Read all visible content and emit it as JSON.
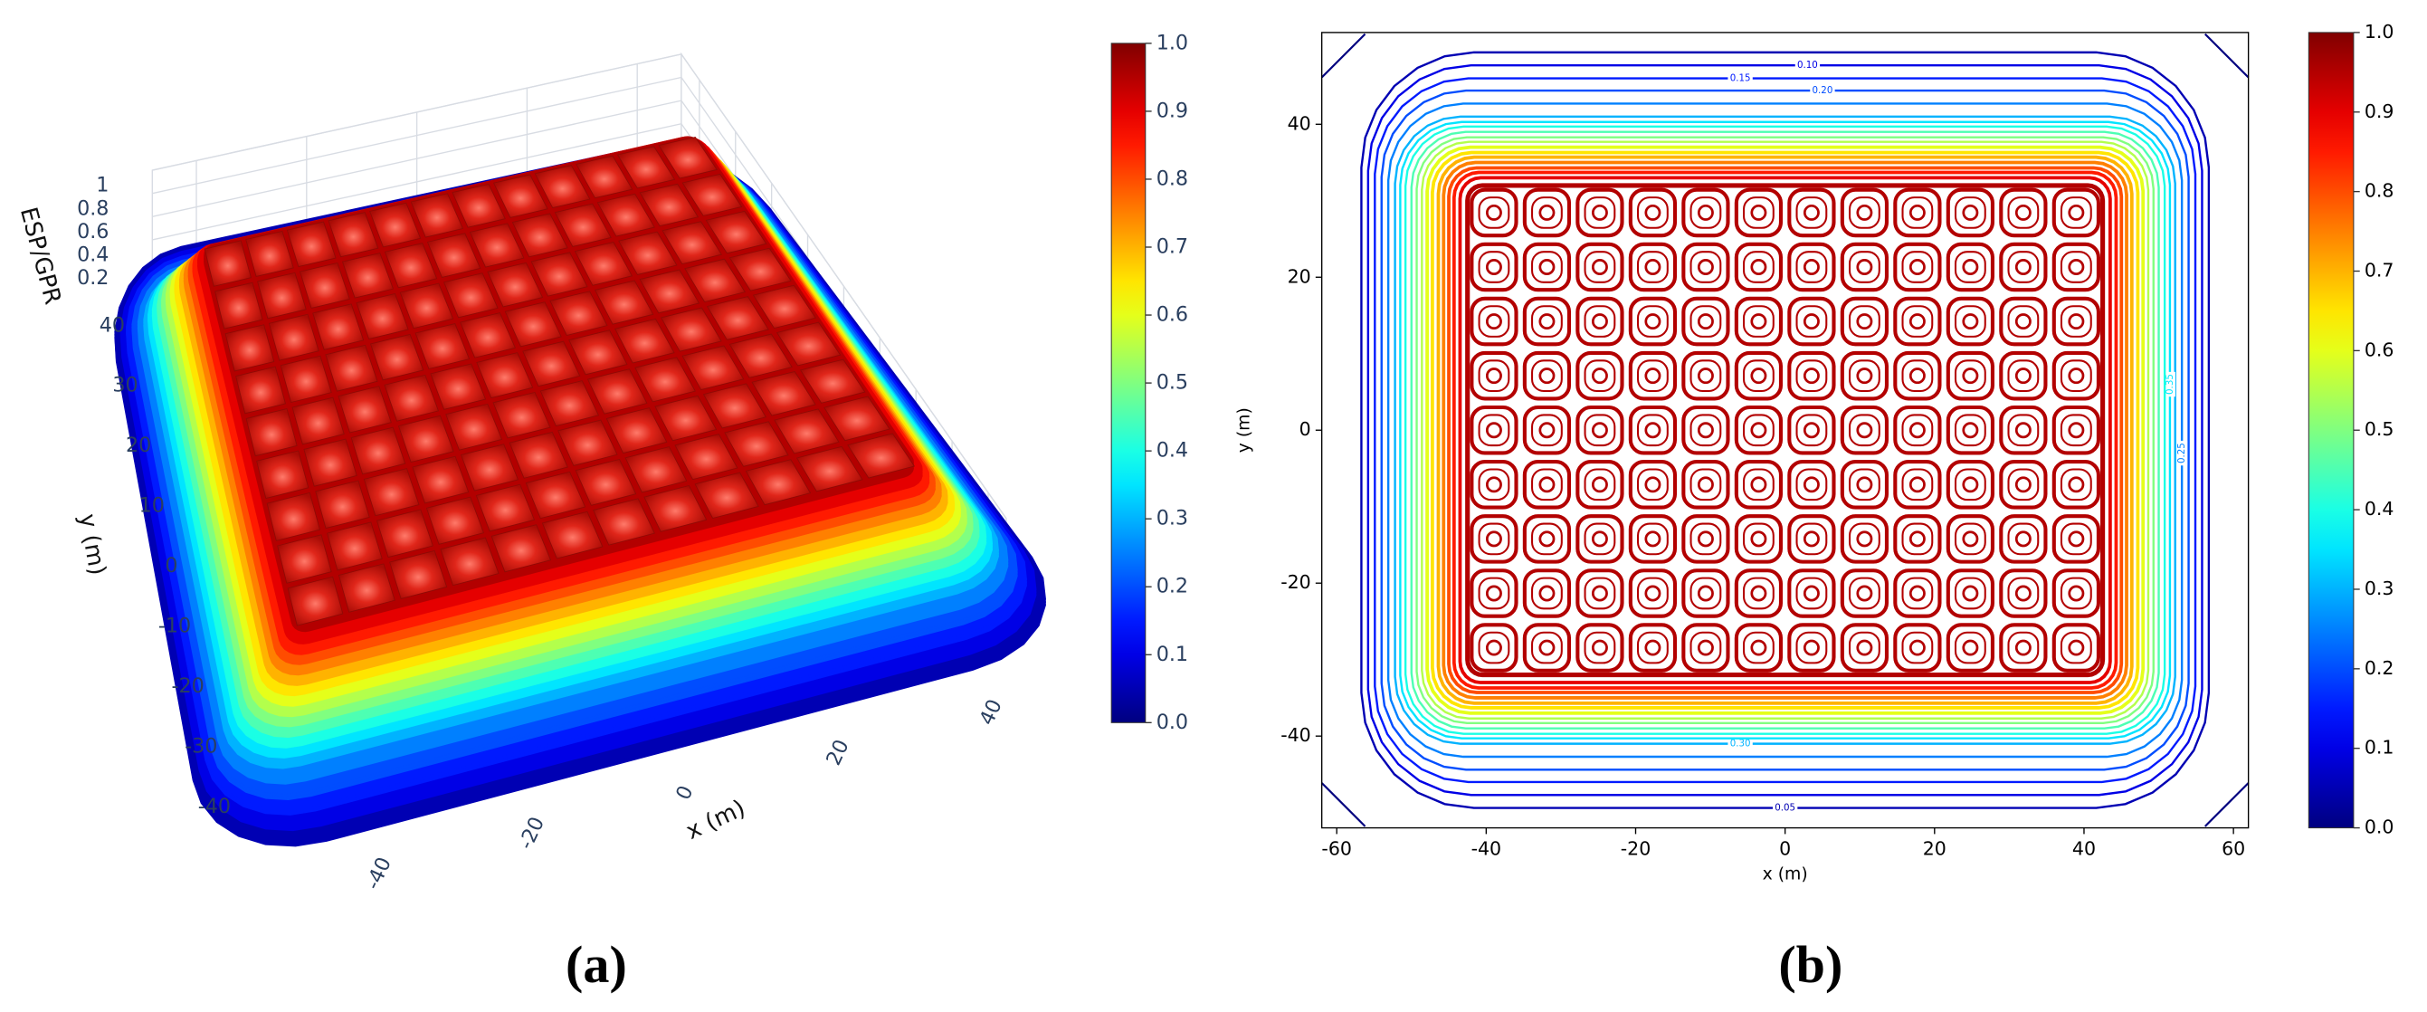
{
  "chart_data": [
    {
      "type": "surface3d",
      "caption": "(a)",
      "xlabel": "x (m)",
      "ylabel": "y (m)",
      "zlabel": "ESP/GPR",
      "xlim": [
        -48,
        48
      ],
      "ylim": [
        -45,
        45
      ],
      "zlim": [
        0,
        1
      ],
      "xticks": [
        -40,
        -20,
        0,
        20,
        40
      ],
      "yticks": [
        -40,
        -30,
        -20,
        -10,
        0,
        10,
        20,
        30,
        40
      ],
      "zticks": [
        0.2,
        0.4,
        0.6,
        0.8,
        1
      ],
      "colormap": "jet",
      "colorbar": {
        "clim": [
          0,
          1
        ],
        "ticks": [
          {
            "value": 0,
            "label": "0.0"
          },
          {
            "value": 0.1,
            "label": "0.1"
          },
          {
            "value": 0.2,
            "label": "0.2"
          },
          {
            "value": 0.3,
            "label": "0.3"
          },
          {
            "value": 0.4,
            "label": "0.4"
          },
          {
            "value": 0.5,
            "label": "0.5"
          },
          {
            "value": 0.6,
            "label": "0.6"
          },
          {
            "value": 0.7,
            "label": "0.7"
          },
          {
            "value": 0.8,
            "label": "0.8"
          },
          {
            "value": 0.9,
            "label": "0.9"
          },
          {
            "value": 1,
            "label": "1.0"
          }
        ]
      }
    },
    {
      "type": "contour",
      "caption": "(b)",
      "xlabel": "x (m)",
      "ylabel": "y (m)",
      "xlim": [
        -62,
        62
      ],
      "ylim": [
        -52,
        52
      ],
      "xticks": [
        -60,
        -40,
        -20,
        0,
        20,
        40,
        60
      ],
      "yticks": [
        -40,
        -20,
        0,
        20,
        40
      ],
      "colormap": "jet",
      "colorbar": {
        "clim": [
          0,
          1
        ],
        "ticks": [
          {
            "value": 0,
            "label": "0.0"
          },
          {
            "value": 0.1,
            "label": "0.1"
          },
          {
            "value": 0.2,
            "label": "0.2"
          },
          {
            "value": 0.3,
            "label": "0.3"
          },
          {
            "value": 0.4,
            "label": "0.4"
          },
          {
            "value": 0.5,
            "label": "0.5"
          },
          {
            "value": 0.6,
            "label": "0.6"
          },
          {
            "value": 0.7,
            "label": "0.7"
          },
          {
            "value": 0.8,
            "label": "0.8"
          },
          {
            "value": 0.9,
            "label": "0.9"
          },
          {
            "value": 1,
            "label": "1.0"
          }
        ]
      },
      "contours": [
        {
          "level": {
            "value": 0.05,
            "label": "0.05"
          },
          "x": [
            -56.7,
            56.7
          ],
          "y": [
            -49.4,
            49.4
          ]
        },
        {
          "level": {
            "value": 0.1,
            "label": "0.10"
          },
          "x": [
            -55.8,
            55.8
          ],
          "y": [
            -47.7,
            47.7
          ]
        },
        {
          "level": {
            "value": 0.15,
            "label": "0.15"
          },
          "x": [
            -54.9,
            54.9
          ],
          "y": [
            -46.0,
            46.0
          ]
        },
        {
          "level": {
            "value": 0.2,
            "label": "0.20"
          },
          "x": [
            -54.0,
            54.0
          ],
          "y": [
            -44.4,
            44.4
          ]
        },
        {
          "level": {
            "value": 0.25,
            "label": "0.25"
          },
          "x": [
            -53.1,
            53.1
          ],
          "y": [
            -42.7,
            42.7
          ]
        },
        {
          "level": {
            "value": 0.3,
            "label": "0.30"
          },
          "x": [
            -52.2,
            52.2
          ],
          "y": [
            -41.0,
            41.0
          ]
        },
        {
          "level": {
            "value": 0.35,
            "label": "0.35"
          },
          "x": [
            -51.5,
            51.5
          ],
          "y": [
            -40.3,
            40.3
          ]
        },
        {
          "level": 0.4,
          "x": [
            -50.8,
            50.8
          ],
          "y": [
            -39.7,
            39.7
          ]
        },
        {
          "level": 0.45,
          "x": [
            -50.0,
            50.0
          ],
          "y": [
            -39.0,
            39.0
          ]
        },
        {
          "level": 0.5,
          "x": [
            -49.3,
            49.3
          ],
          "y": [
            -38.3,
            38.3
          ]
        },
        {
          "level": 0.55,
          "x": [
            -48.6,
            48.6
          ],
          "y": [
            -37.7,
            37.7
          ]
        },
        {
          "level": 0.6,
          "x": [
            -47.9,
            47.9
          ],
          "y": [
            -37.0,
            37.0
          ]
        },
        {
          "level": 0.65,
          "x": [
            -47.2,
            47.2
          ],
          "y": [
            -36.3,
            36.3
          ]
        },
        {
          "level": 0.7,
          "x": [
            -46.4,
            46.4
          ],
          "y": [
            -35.7,
            35.7
          ]
        },
        {
          "level": 0.75,
          "x": [
            -45.7,
            45.7
          ],
          "y": [
            -35.0,
            35.0
          ]
        },
        {
          "level": 0.8,
          "x": [
            -45.0,
            45.0
          ],
          "y": [
            -34.3,
            34.3
          ]
        },
        {
          "level": 0.85,
          "x": [
            -44.3,
            44.3
          ],
          "y": [
            -33.7,
            33.7
          ]
        },
        {
          "level": 0.9,
          "x": [
            -43.5,
            43.5
          ],
          "y": [
            -33.0,
            33.0
          ]
        },
        {
          "level": 0.95,
          "x": [
            -42.5,
            42.5
          ],
          "y": [
            -32.0,
            32.0
          ]
        }
      ]
    }
  ]
}
